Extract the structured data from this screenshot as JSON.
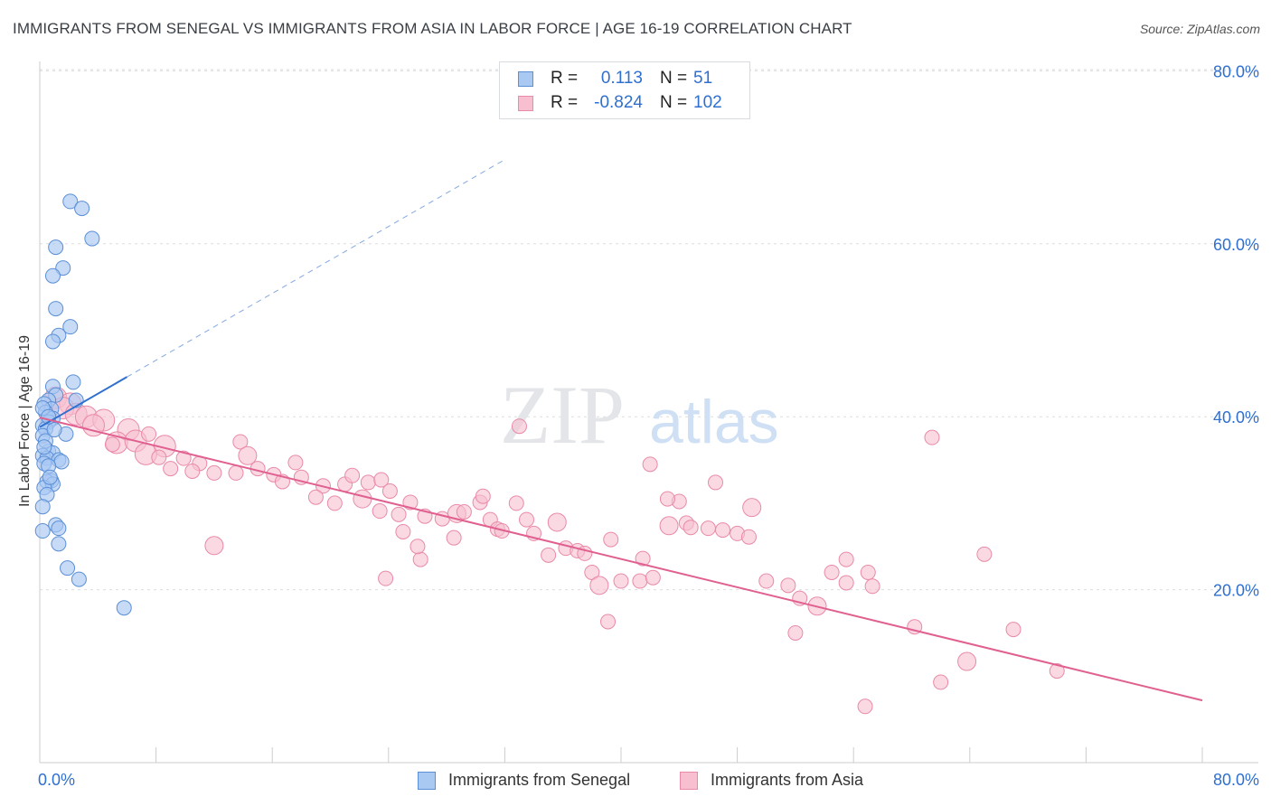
{
  "title": "IMMIGRANTS FROM SENEGAL VS IMMIGRANTS FROM ASIA IN LABOR FORCE | AGE 16-19 CORRELATION CHART",
  "source": "Source: ZipAtlas.com",
  "watermark": {
    "zip": "ZIP",
    "atlas": "atlas"
  },
  "colors": {
    "senegal_fill": "#a9c8f2",
    "senegal_stroke": "#5b8fd6",
    "senegal_line": "#2f6fd0",
    "asia_fill": "#f7bfd0",
    "asia_stroke": "#e98aa8",
    "asia_line": "#e0608f",
    "axis_text": "#2f6fd0",
    "grid": "#dddddd"
  },
  "legend": {
    "rows": [
      {
        "r_label": "R =",
        "r_value": "0.113",
        "n_label": "N =",
        "n_value": "51",
        "series": "senegal"
      },
      {
        "r_label": "R =",
        "r_value": "-0.824",
        "n_label": "N =",
        "n_value": "102",
        "series": "asia"
      }
    ]
  },
  "bottom_legend": {
    "senegal": "Immigrants from Senegal",
    "asia": "Immigrants from Asia"
  },
  "chart_data": {
    "type": "scatter",
    "title": "IMMIGRANTS FROM SENEGAL VS IMMIGRANTS FROM ASIA IN LABOR FORCE | AGE 16-19 CORRELATION CHART",
    "ylabel": "In Labor Force | Age 16-19",
    "xlim": [
      0,
      80
    ],
    "ylim": [
      0,
      83
    ],
    "x_tick_labels": [
      "0.0%",
      "80.0%"
    ],
    "y_ticks": [
      20,
      40,
      60,
      80
    ],
    "y_tick_labels": [
      "20.0%",
      "40.0%",
      "60.0%",
      "80.0%"
    ],
    "grid": true,
    "legend_position": "top-center",
    "series": [
      {
        "name": "Immigrants from Senegal",
        "key": "senegal",
        "points": [
          [
            2.1,
            64.9
          ],
          [
            2.9,
            64.1
          ],
          [
            3.6,
            60.6
          ],
          [
            1.1,
            59.6
          ],
          [
            1.6,
            57.2
          ],
          [
            0.9,
            56.3
          ],
          [
            1.1,
            52.5
          ],
          [
            2.1,
            50.4
          ],
          [
            1.3,
            49.4
          ],
          [
            0.9,
            48.7
          ],
          [
            2.3,
            44.0
          ],
          [
            0.9,
            43.5
          ],
          [
            1.1,
            42.5
          ],
          [
            2.5,
            41.9
          ],
          [
            0.6,
            41.9
          ],
          [
            0.3,
            41.5
          ],
          [
            0.8,
            40.9
          ],
          [
            0.4,
            40.5
          ],
          [
            0.9,
            39.8
          ],
          [
            0.6,
            39.4
          ],
          [
            0.2,
            39.0
          ],
          [
            0.4,
            38.6
          ],
          [
            1.8,
            38.0
          ],
          [
            0.2,
            37.8
          ],
          [
            0.6,
            36.0
          ],
          [
            0.9,
            35.8
          ],
          [
            0.2,
            35.5
          ],
          [
            0.5,
            35.2
          ],
          [
            1.3,
            35.0
          ],
          [
            1.5,
            34.8
          ],
          [
            0.3,
            34.6
          ],
          [
            0.6,
            34.3
          ],
          [
            0.8,
            32.6
          ],
          [
            0.5,
            32.5
          ],
          [
            0.9,
            32.2
          ],
          [
            0.3,
            31.8
          ],
          [
            0.5,
            31.0
          ],
          [
            0.2,
            29.6
          ],
          [
            1.1,
            27.5
          ],
          [
            1.3,
            27.1
          ],
          [
            0.2,
            26.8
          ],
          [
            1.3,
            25.3
          ],
          [
            1.9,
            22.5
          ],
          [
            2.7,
            21.2
          ],
          [
            5.8,
            17.9
          ],
          [
            0.2,
            41.0
          ],
          [
            0.4,
            37.2
          ],
          [
            0.7,
            33.0
          ],
          [
            1.0,
            38.5
          ],
          [
            0.3,
            36.5
          ],
          [
            0.6,
            40.0
          ]
        ],
        "trend": {
          "x": [
            0,
            6
          ],
          "y": [
            38.8,
            44.6
          ],
          "extended_to": [
            32,
            80
          ]
        }
      },
      {
        "name": "Immigrants from Asia",
        "key": "asia",
        "points": [
          [
            1.1,
            42.2
          ],
          [
            2.1,
            41.5
          ],
          [
            1.6,
            41.0
          ],
          [
            2.5,
            40.3
          ],
          [
            3.2,
            40.0
          ],
          [
            4.4,
            39.6
          ],
          [
            3.7,
            39.0
          ],
          [
            6.1,
            38.5
          ],
          [
            5.3,
            37.0
          ],
          [
            6.6,
            37.2
          ],
          [
            8.6,
            36.6
          ],
          [
            7.3,
            35.7
          ],
          [
            8.2,
            35.3
          ],
          [
            9.9,
            35.2
          ],
          [
            13.8,
            37.1
          ],
          [
            11.0,
            34.6
          ],
          [
            12.0,
            33.5
          ],
          [
            13.5,
            33.5
          ],
          [
            14.3,
            35.5
          ],
          [
            17.6,
            34.7
          ],
          [
            16.1,
            33.3
          ],
          [
            16.7,
            32.5
          ],
          [
            19.5,
            32.0
          ],
          [
            21.0,
            32.2
          ],
          [
            22.6,
            32.4
          ],
          [
            23.5,
            32.7
          ],
          [
            24.1,
            31.4
          ],
          [
            22.2,
            30.5
          ],
          [
            25.5,
            30.1
          ],
          [
            19.0,
            30.7
          ],
          [
            20.3,
            30.0
          ],
          [
            23.4,
            29.1
          ],
          [
            24.7,
            28.7
          ],
          [
            25.0,
            26.7
          ],
          [
            26.5,
            28.5
          ],
          [
            27.7,
            28.2
          ],
          [
            28.7,
            28.8
          ],
          [
            29.2,
            29.0
          ],
          [
            30.3,
            30.1
          ],
          [
            31.0,
            28.1
          ],
          [
            31.5,
            27.0
          ],
          [
            31.8,
            26.8
          ],
          [
            32.8,
            30.0
          ],
          [
            33.5,
            28.1
          ],
          [
            34.0,
            26.5
          ],
          [
            35.6,
            27.8
          ],
          [
            36.2,
            24.8
          ],
          [
            37.0,
            24.5
          ],
          [
            38.0,
            22.0
          ],
          [
            39.3,
            25.8
          ],
          [
            40.0,
            21.0
          ],
          [
            41.5,
            23.6
          ],
          [
            41.3,
            21.0
          ],
          [
            42.2,
            21.4
          ],
          [
            43.3,
            27.4
          ],
          [
            44.5,
            27.7
          ],
          [
            46.0,
            27.1
          ],
          [
            47.0,
            26.9
          ],
          [
            48.0,
            26.5
          ],
          [
            48.8,
            26.1
          ],
          [
            50.0,
            21.0
          ],
          [
            51.5,
            20.5
          ],
          [
            52.3,
            19.0
          ],
          [
            53.5,
            18.1
          ],
          [
            52.0,
            15.0
          ],
          [
            54.5,
            22.0
          ],
          [
            55.5,
            23.5
          ],
          [
            55.5,
            20.8
          ],
          [
            57.0,
            22.0
          ],
          [
            57.3,
            20.4
          ],
          [
            60.2,
            15.7
          ],
          [
            62.0,
            9.3
          ],
          [
            63.8,
            11.7
          ],
          [
            65.0,
            24.1
          ],
          [
            67.0,
            15.4
          ],
          [
            70.0,
            10.6
          ],
          [
            61.4,
            37.6
          ],
          [
            39.1,
            16.3
          ],
          [
            42.0,
            34.5
          ],
          [
            44.0,
            30.2
          ],
          [
            46.5,
            32.4
          ],
          [
            49.0,
            29.5
          ],
          [
            43.2,
            30.5
          ],
          [
            44.8,
            27.2
          ],
          [
            28.5,
            26.0
          ],
          [
            26.2,
            23.5
          ],
          [
            23.8,
            21.3
          ],
          [
            30.5,
            30.8
          ],
          [
            33.0,
            38.9
          ],
          [
            35.0,
            24.0
          ],
          [
            12.0,
            25.1
          ],
          [
            7.5,
            38.0
          ],
          [
            5.0,
            36.8
          ],
          [
            9.0,
            34.0
          ],
          [
            10.5,
            33.7
          ],
          [
            15.0,
            34.0
          ],
          [
            18.0,
            33.0
          ],
          [
            21.5,
            33.2
          ],
          [
            56.8,
            6.5
          ],
          [
            38.5,
            20.5
          ],
          [
            37.5,
            24.2
          ],
          [
            26.0,
            25.0
          ]
        ],
        "trend": {
          "x": [
            0,
            80
          ],
          "y": [
            39.9,
            7.2
          ]
        }
      }
    ]
  }
}
